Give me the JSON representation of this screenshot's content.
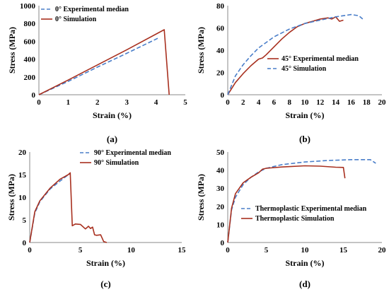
{
  "colors": {
    "experimental": "#4a7ec9",
    "simulation": "#a8301f"
  },
  "chart_data": [
    {
      "panel_label": "(a)",
      "type": "line",
      "xlabel": "Strain (%)",
      "ylabel": "Stress (MPa)",
      "xlim": [
        0,
        5
      ],
      "ylim": [
        0,
        1000
      ],
      "xticks": [
        0,
        1,
        2,
        3,
        4,
        5
      ],
      "yticks": [
        0,
        200,
        400,
        600,
        800,
        1000
      ],
      "legend_position": "top-left",
      "series": [
        {
          "name": "0° Experimental median",
          "style": "dashed",
          "color": "#4a7ec9",
          "x": [
            0,
            1,
            2,
            3,
            4.1
          ],
          "y": [
            0,
            150,
            310,
            465,
            640
          ]
        },
        {
          "name": "0° Simulation",
          "style": "solid",
          "color": "#a8301f",
          "x": [
            0,
            1,
            2,
            3,
            4.28,
            4.45
          ],
          "y": [
            0,
            165,
            335,
            505,
            730,
            0
          ]
        }
      ]
    },
    {
      "panel_label": "(b)",
      "type": "line",
      "xlabel": "Strain (%)",
      "ylabel": "Stress (MPa)",
      "xlim": [
        0,
        20
      ],
      "ylim": [
        0,
        80
      ],
      "xticks": [
        0,
        2,
        4,
        6,
        8,
        10,
        12,
        14,
        16,
        18,
        20
      ],
      "yticks": [
        0,
        20,
        40,
        60,
        80
      ],
      "legend_position": "center-right",
      "series": [
        {
          "name": "45° Experimental median",
          "style": "solid",
          "color": "#a8301f",
          "x": [
            0,
            1,
            2,
            3,
            4,
            4.5,
            5,
            6,
            7,
            8,
            9,
            10,
            11,
            12,
            13,
            13.5,
            14,
            14.5,
            15
          ],
          "y": [
            0,
            11,
            19,
            26,
            32,
            33,
            36,
            43,
            50,
            56,
            61,
            64,
            66,
            68,
            69,
            68,
            70,
            66,
            67
          ]
        },
        {
          "name": "45° Simulation",
          "style": "dashed",
          "color": "#4a7ec9",
          "x": [
            0,
            1,
            2,
            3,
            4,
            6,
            8,
            10,
            12,
            14,
            16,
            17,
            17.5
          ],
          "y": [
            0,
            17,
            27,
            35,
            42,
            52,
            59,
            64,
            67,
            70,
            72,
            71,
            68
          ]
        }
      ]
    },
    {
      "panel_label": "(c)",
      "type": "line",
      "xlabel": "Strain (%)",
      "ylabel": "Stress (MPa)",
      "xlim": [
        0,
        15
      ],
      "ylim": [
        0,
        20
      ],
      "xticks": [
        0,
        5,
        10,
        15
      ],
      "yticks": [
        0,
        5,
        10,
        15,
        20
      ],
      "legend_position": "top-right",
      "series": [
        {
          "name": "90° Experimental median",
          "style": "dashed",
          "color": "#4a7ec9",
          "x": [
            0,
            0.5,
            1,
            2,
            3,
            3.7,
            4.0
          ],
          "y": [
            0,
            6.5,
            9,
            11.8,
            13.6,
            14.8,
            15.1
          ]
        },
        {
          "name": "90° Simulation",
          "style": "solid",
          "color": "#a8301f",
          "x": [
            0,
            0.5,
            1,
            2,
            3,
            3.8,
            4.0,
            4.2,
            4.5,
            5.0,
            5.5,
            5.8,
            6.0,
            6.2,
            6.4,
            6.6,
            7.0,
            7.3,
            7.6
          ],
          "y": [
            0,
            6.8,
            9.2,
            12,
            14,
            15,
            15.4,
            3.7,
            4.1,
            4.0,
            3.0,
            3.6,
            3.1,
            3.4,
            1.7,
            1.6,
            1.7,
            0.2,
            0
          ]
        }
      ]
    },
    {
      "panel_label": "(d)",
      "type": "line",
      "xlabel": "Strain (%)",
      "ylabel": "Stress (MPa)",
      "xlim": [
        0,
        20
      ],
      "ylim": [
        0,
        50
      ],
      "xticks": [
        0,
        5,
        10,
        15,
        20
      ],
      "yticks": [
        0,
        10,
        20,
        30,
        40,
        50
      ],
      "legend_position": "bottom-right",
      "series": [
        {
          "name": "Thermoplastic Experimental median",
          "style": "dashed",
          "color": "#4a7ec9",
          "x": [
            0,
            0.5,
            1,
            2,
            3,
            4,
            5,
            7,
            10,
            13,
            16,
            18.5,
            19.2
          ],
          "y": [
            0,
            18,
            25,
            32,
            36,
            39,
            41,
            43,
            44.5,
            45.3,
            45.8,
            45.8,
            43.8
          ]
        },
        {
          "name": "Thermoplastic Simulation",
          "style": "solid",
          "color": "#a8301f",
          "x": [
            0,
            0.5,
            1,
            2,
            3,
            4,
            4.5,
            5,
            7,
            10,
            12,
            14,
            15,
            15.2
          ],
          "y": [
            0,
            19,
            27,
            33,
            36,
            38.5,
            40.5,
            41,
            41.7,
            42.4,
            42.2,
            41.6,
            41.5,
            35.5
          ]
        }
      ]
    }
  ]
}
